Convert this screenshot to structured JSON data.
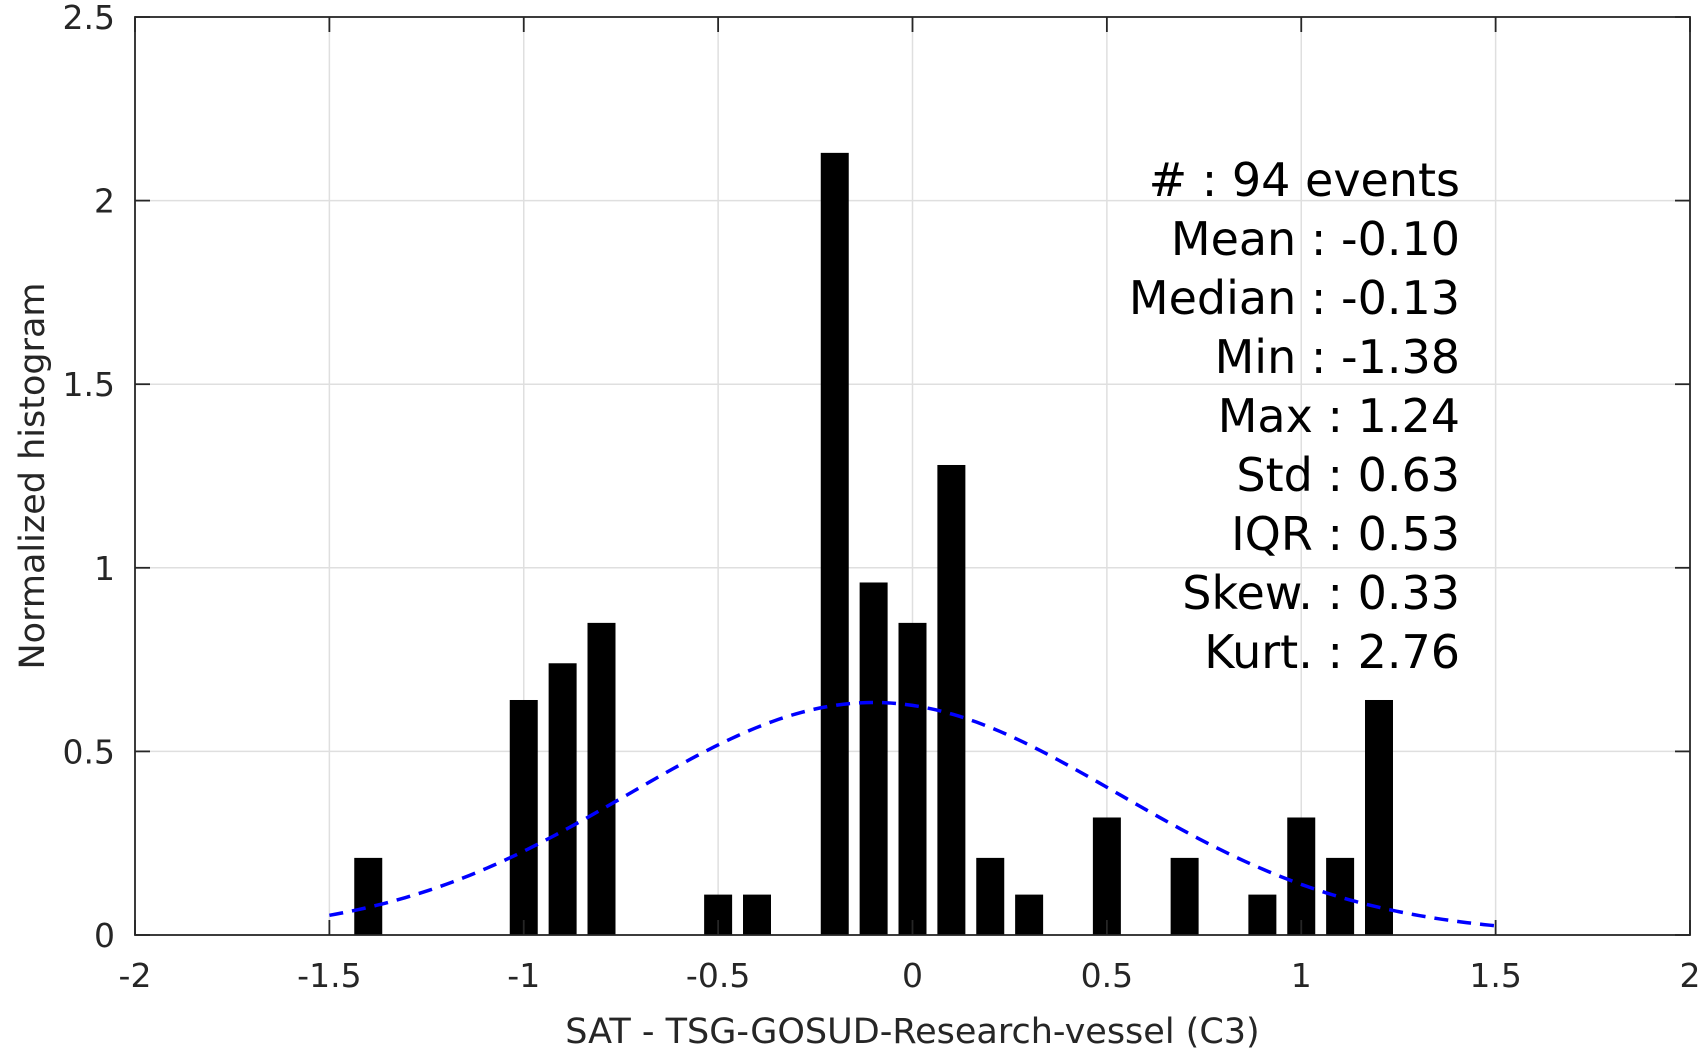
{
  "chart_data": {
    "type": "bar",
    "xlabel": "SAT - TSG-GOSUD-Research-vessel (C3)",
    "ylabel": "Normalized histogram",
    "xlim": [
      -2,
      2
    ],
    "ylim": [
      0,
      2.5
    ],
    "grid": true,
    "x_ticks": [
      -2,
      -1.5,
      -1,
      -0.5,
      0,
      0.5,
      1,
      1.5,
      2
    ],
    "x_tick_labels": [
      "-2",
      "-1.5",
      "-1",
      "-0.5",
      "0",
      "0.5",
      "1",
      "1.5",
      "2"
    ],
    "y_ticks": [
      0,
      0.5,
      1,
      1.5,
      2,
      2.5
    ],
    "y_tick_labels": [
      "0",
      "0.5",
      "1",
      "1.5",
      "2",
      "2.5"
    ],
    "bin_width": 0.1,
    "bar_color": "#000000",
    "bars": [
      {
        "x": -1.4,
        "value": 0.21
      },
      {
        "x": -1.0,
        "value": 0.64
      },
      {
        "x": -0.9,
        "value": 0.74
      },
      {
        "x": -0.8,
        "value": 0.85
      },
      {
        "x": -0.5,
        "value": 0.11
      },
      {
        "x": -0.4,
        "value": 0.11
      },
      {
        "x": -0.2,
        "value": 2.13
      },
      {
        "x": -0.1,
        "value": 0.96
      },
      {
        "x": 0.0,
        "value": 0.85
      },
      {
        "x": 0.1,
        "value": 1.28
      },
      {
        "x": 0.2,
        "value": 0.21
      },
      {
        "x": 0.3,
        "value": 0.11
      },
      {
        "x": 0.5,
        "value": 0.32
      },
      {
        "x": 0.7,
        "value": 0.21
      },
      {
        "x": 0.9,
        "value": 0.11
      },
      {
        "x": 1.0,
        "value": 0.32
      },
      {
        "x": 1.1,
        "value": 0.21
      },
      {
        "x": 1.2,
        "value": 0.64
      }
    ],
    "fit_curve": {
      "type": "normal",
      "mean": -0.1,
      "std": 0.63,
      "x_range": [
        -1.5,
        1.5
      ],
      "color": "#0000ff",
      "style": "dashed"
    },
    "stats": [
      {
        "label": "#  ",
        "value": "94 events"
      },
      {
        "label": "Mean",
        "value": "-0.10"
      },
      {
        "label": "Median",
        "value": "-0.13"
      },
      {
        "label": "Min",
        "value": "-1.38"
      },
      {
        "label": "Max",
        "value": "1.24"
      },
      {
        "label": "Std",
        "value": "0.63"
      },
      {
        "label": "IQR",
        "value": "0.53"
      },
      {
        "label": "Skew.",
        "value": "0.33"
      },
      {
        "label": "Kurt.",
        "value": "2.76"
      }
    ]
  }
}
